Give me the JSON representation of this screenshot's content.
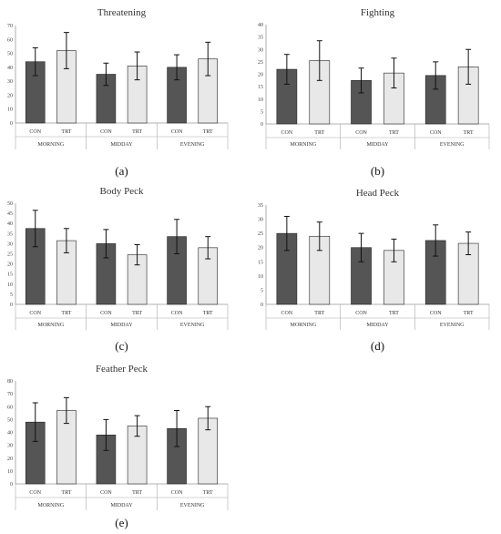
{
  "chart_data": [
    {
      "type": "bar",
      "panel_label": "(a)",
      "title": "Threatening",
      "ylim": [
        0,
        70
      ],
      "yticks": [
        0,
        10,
        20,
        30,
        40,
        50,
        60,
        70
      ],
      "groups": [
        "MORNING",
        "MIDDAY",
        "EVENING"
      ],
      "categories": [
        "CON",
        "TRT"
      ],
      "values": [
        [
          44,
          52
        ],
        [
          35,
          41
        ],
        [
          40,
          46
        ]
      ],
      "errors": [
        [
          10,
          13
        ],
        [
          8,
          10
        ],
        [
          9,
          12
        ]
      ]
    },
    {
      "type": "bar",
      "panel_label": "(b)",
      "title": "Fighting",
      "ylim": [
        0,
        40
      ],
      "yticks": [
        0,
        5,
        10,
        15,
        20,
        25,
        30,
        35,
        40
      ],
      "groups": [
        "MORNING",
        "MIDDAY",
        "EVENING"
      ],
      "categories": [
        "CON",
        "TRT"
      ],
      "values": [
        [
          22,
          25.5
        ],
        [
          17.5,
          20.5
        ],
        [
          19.5,
          23
        ]
      ],
      "errors": [
        [
          6,
          8
        ],
        [
          5,
          6
        ],
        [
          5.5,
          7
        ]
      ]
    },
    {
      "type": "bar",
      "panel_label": "(c)",
      "title": "Body Peck",
      "ylim": [
        0,
        50
      ],
      "yticks": [
        0,
        5,
        10,
        15,
        20,
        25,
        30,
        35,
        40,
        45,
        50
      ],
      "groups": [
        "MORNING",
        "MIDDAY",
        "EVENING"
      ],
      "categories": [
        "CON",
        "TRT"
      ],
      "values": [
        [
          37.5,
          31.5
        ],
        [
          30,
          24.5
        ],
        [
          33.5,
          28
        ]
      ],
      "errors": [
        [
          9,
          6
        ],
        [
          7,
          5
        ],
        [
          8.5,
          5.5
        ]
      ]
    },
    {
      "type": "bar",
      "panel_label": "(d)",
      "title": "Head Peck",
      "ylim": [
        0,
        35
      ],
      "yticks": [
        0,
        5,
        10,
        15,
        20,
        25,
        30,
        35
      ],
      "groups": [
        "MORNING",
        "MIDDAY",
        "EVENING"
      ],
      "categories": [
        "CON",
        "TRT"
      ],
      "values": [
        [
          25,
          24
        ],
        [
          20,
          19
        ],
        [
          22.5,
          21.5
        ]
      ],
      "errors": [
        [
          6,
          5
        ],
        [
          5,
          4
        ],
        [
          5.5,
          4
        ]
      ]
    },
    {
      "type": "bar",
      "panel_label": "(e)",
      "title": "Feather Peck",
      "ylim": [
        0,
        80
      ],
      "yticks": [
        0,
        10,
        20,
        30,
        40,
        50,
        60,
        70,
        80
      ],
      "groups": [
        "MORNING",
        "MIDDAY",
        "EVENING"
      ],
      "categories": [
        "CON",
        "TRT"
      ],
      "values": [
        [
          48,
          57
        ],
        [
          38,
          45
        ],
        [
          43,
          51
        ]
      ],
      "errors": [
        [
          15,
          10
        ],
        [
          12,
          8
        ],
        [
          14,
          9
        ]
      ]
    }
  ],
  "colors": {
    "con_fill": "#555555",
    "trt_fill": "#e8e8e8",
    "bar_stroke": "#222222"
  }
}
